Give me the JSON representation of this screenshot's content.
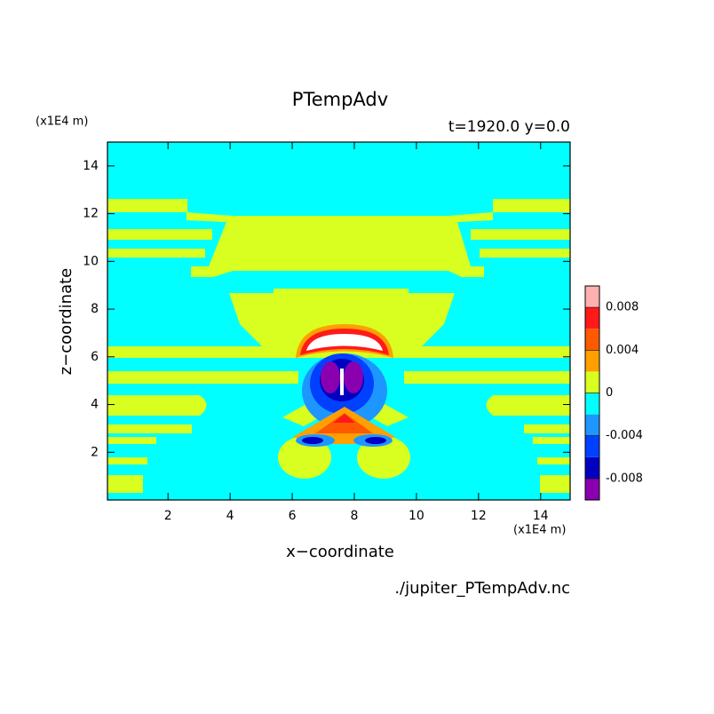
{
  "chart_data": {
    "type": "contour",
    "title": "PTempAdv",
    "subtitle": "t=1920.0 y=0.0",
    "x_label": "x−coordinate",
    "y_label": "z−coordinate",
    "x_unit": "(x1E4 m)",
    "y_unit": "(x1E4 m)",
    "source": "./jupiter_PTempAdv.nc",
    "xlim": [
      0.05,
      14.95
    ],
    "ylim": [
      0,
      15
    ],
    "xticks": [
      2,
      4,
      6,
      8,
      10,
      12,
      14
    ],
    "yticks": [
      2,
      4,
      6,
      8,
      10,
      12,
      14
    ],
    "levels": [
      -0.01,
      -0.008,
      -0.006,
      -0.004,
      -0.002,
      0,
      0.002,
      0.004,
      0.006,
      0.008,
      0.01
    ],
    "colors": [
      "#8a00b0",
      "#0000c0",
      "#0040ff",
      "#1e96ff",
      "#00ffff",
      "#d8ff20",
      "#ffa000",
      "#ff5a00",
      "#ff1a1a",
      "#ffb0b0"
    ],
    "colorbar_ticks": [
      -0.008,
      -0.004,
      0,
      0.004,
      0.008
    ]
  }
}
